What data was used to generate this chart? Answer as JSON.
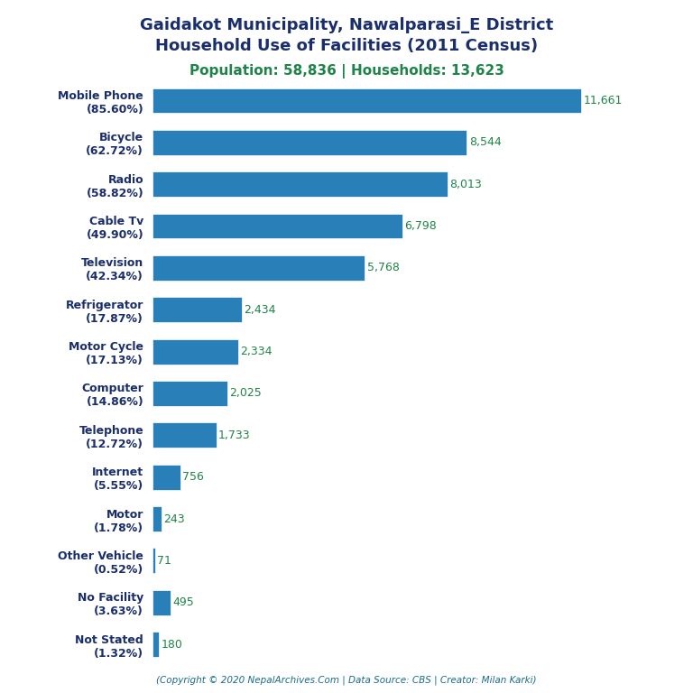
{
  "title_line1": "Gaidakot Municipality, Nawalparasi_E District",
  "title_line2": "Household Use of Facilities (2011 Census)",
  "subtitle": "Population: 58,836 | Households: 13,623",
  "footer": "(Copyright © 2020 NepalArchives.Com | Data Source: CBS | Creator: Milan Karki)",
  "categories": [
    "Mobile Phone\n(85.60%)",
    "Bicycle\n(62.72%)",
    "Radio\n(58.82%)",
    "Cable Tv\n(49.90%)",
    "Television\n(42.34%)",
    "Refrigerator\n(17.87%)",
    "Motor Cycle\n(17.13%)",
    "Computer\n(14.86%)",
    "Telephone\n(12.72%)",
    "Internet\n(5.55%)",
    "Motor\n(1.78%)",
    "Other Vehicle\n(0.52%)",
    "No Facility\n(3.63%)",
    "Not Stated\n(1.32%)"
  ],
  "values": [
    11661,
    8544,
    8013,
    6798,
    5768,
    2434,
    2334,
    2025,
    1733,
    756,
    243,
    71,
    495,
    180
  ],
  "bar_color": "#2980b9",
  "title_color": "#1a2e6b",
  "subtitle_color": "#1e8449",
  "label_color": "#1a2e6b",
  "value_color": "#1e8449",
  "footer_color": "#1a6b8a",
  "bg_color": "#ffffff",
  "xlim": [
    0,
    13000
  ],
  "figsize": [
    7.68,
    7.68
  ],
  "dpi": 100
}
